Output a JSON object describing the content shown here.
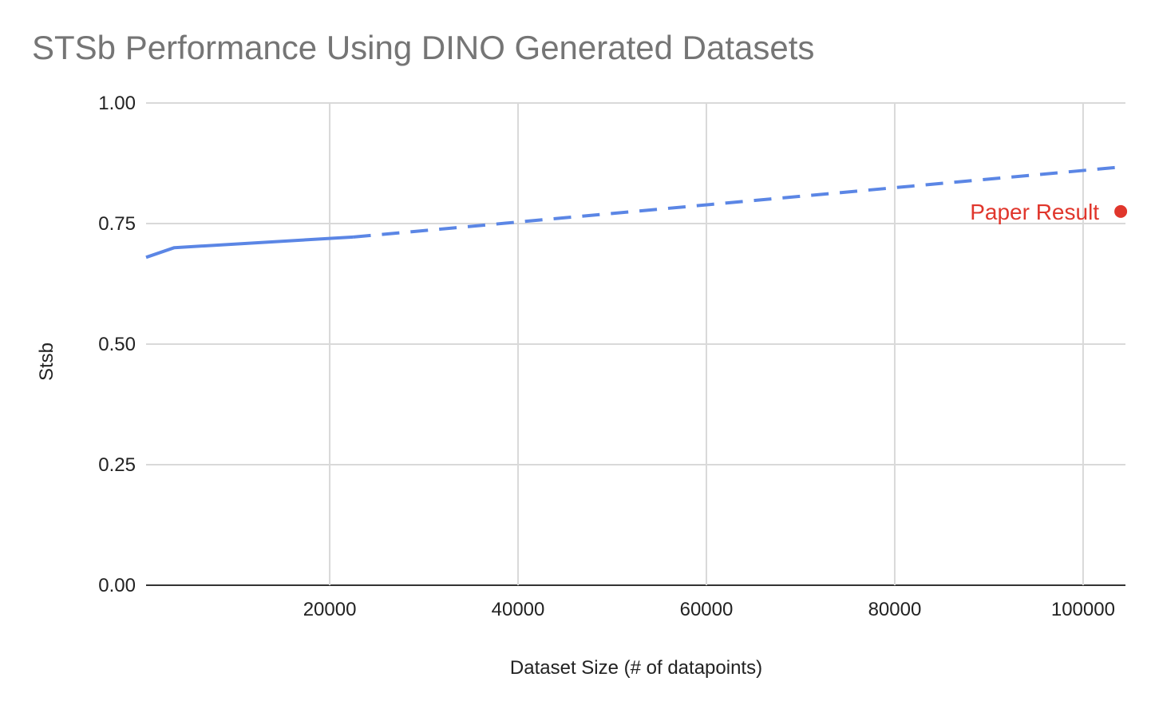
{
  "chart_data": {
    "type": "line",
    "title": "STSb Performance Using DINO Generated Datasets",
    "xlabel": "Dataset Size (# of datapoints)",
    "ylabel": "Stsb",
    "xlim": [
      500,
      104500
    ],
    "ylim": [
      0,
      1
    ],
    "x_ticks": [
      20000,
      40000,
      60000,
      80000,
      100000
    ],
    "x_tick_labels": [
      "20000",
      "40000",
      "60000",
      "80000",
      "100000"
    ],
    "y_ticks": [
      0,
      0.25,
      0.5,
      0.75,
      1
    ],
    "y_tick_labels": [
      "0.00",
      "0.25",
      "0.50",
      "0.75",
      "1.00"
    ],
    "grid": true,
    "series": [
      {
        "style": "solid",
        "color": "#5b86e5",
        "x": [
          500,
          3500,
          22500
        ],
        "y": [
          0.68,
          0.7,
          0.722
        ]
      },
      {
        "style": "dashed",
        "color": "#5b86e5",
        "x": [
          22500,
          104500
        ],
        "y": [
          0.722,
          0.868
        ]
      }
    ],
    "annotations": [
      {
        "label": "Paper Result",
        "x": 104000,
        "y": 0.775,
        "color": "#e0362c",
        "marker": "dot"
      }
    ]
  }
}
